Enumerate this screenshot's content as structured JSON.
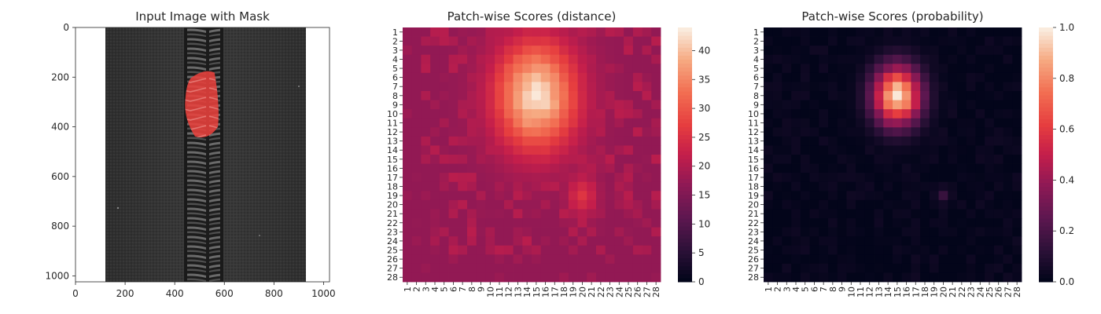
{
  "chart_data": [
    {
      "type": "image",
      "title": "Input Image with Mask",
      "xlabel": "",
      "ylabel": "",
      "xlim": [
        0,
        1024
      ],
      "ylim": [
        1024,
        0
      ],
      "xticks": [
        0,
        200,
        400,
        600,
        800,
        1000
      ],
      "yticks": [
        0,
        200,
        400,
        600,
        800,
        1000
      ],
      "content": "grayscale zipper tape with a red-tinted defect mask on the zipper teeth",
      "mask_color": "#e8413c",
      "mask_extent": {
        "x": [
          440,
          580
        ],
        "y": [
          170,
          450
        ]
      }
    },
    {
      "type": "heatmap",
      "title": "Patch-wise Scores (distance)",
      "xlabel": "",
      "ylabel": "",
      "rows": [
        "1",
        "2",
        "3",
        "4",
        "5",
        "6",
        "7",
        "8",
        "9",
        "10",
        "11",
        "12",
        "13",
        "14",
        "15",
        "16",
        "17",
        "18",
        "19",
        "20",
        "21",
        "22",
        "23",
        "24",
        "25",
        "26",
        "27",
        "28"
      ],
      "cols": [
        "1",
        "2",
        "3",
        "4",
        "5",
        "6",
        "7",
        "8",
        "9",
        "10",
        "11",
        "12",
        "13",
        "14",
        "15",
        "16",
        "17",
        "18",
        "19",
        "20",
        "21",
        "22",
        "23",
        "24",
        "25",
        "26",
        "27",
        "28"
      ],
      "colorbar": {
        "min": 0,
        "max": 44,
        "ticks": [
          0,
          5,
          10,
          15,
          20,
          25,
          30,
          35,
          40
        ]
      },
      "colormap": "rocket",
      "background_value": 17,
      "hotspots": [
        {
          "row": 8,
          "col": 15,
          "peak": 44,
          "row_range": [
            3,
            13
          ],
          "col_range": [
            11,
            19
          ]
        },
        {
          "row": 19,
          "col": 20,
          "peak": 26,
          "row_range": [
            17,
            21
          ],
          "col_range": [
            19,
            22
          ]
        }
      ]
    },
    {
      "type": "heatmap",
      "title": "Patch-wise Scores (probability)",
      "xlabel": "",
      "ylabel": "",
      "rows": [
        "1",
        "2",
        "3",
        "4",
        "5",
        "6",
        "7",
        "8",
        "9",
        "10",
        "11",
        "12",
        "13",
        "14",
        "15",
        "16",
        "17",
        "18",
        "19",
        "20",
        "21",
        "22",
        "23",
        "24",
        "25",
        "26",
        "27",
        "28"
      ],
      "cols": [
        "1",
        "2",
        "3",
        "4",
        "5",
        "6",
        "7",
        "8",
        "9",
        "10",
        "11",
        "12",
        "13",
        "14",
        "15",
        "16",
        "17",
        "18",
        "19",
        "20",
        "21",
        "22",
        "23",
        "24",
        "25",
        "26",
        "27",
        "28"
      ],
      "colorbar": {
        "min": 0.0,
        "max": 1.0,
        "ticks": [
          "0.0",
          "0.2",
          "0.4",
          "0.6",
          "0.8",
          "1.0"
        ]
      },
      "colormap": "rocket",
      "background_value": 0.02,
      "hotspots": [
        {
          "row": 8,
          "col": 15,
          "peak": 1.0,
          "row_range": [
            5,
            12
          ],
          "col_range": [
            12,
            18
          ]
        },
        {
          "row": 19,
          "col": 20,
          "peak": 0.15,
          "row_range": [
            18,
            20
          ],
          "col_range": [
            19,
            21
          ]
        }
      ]
    }
  ]
}
